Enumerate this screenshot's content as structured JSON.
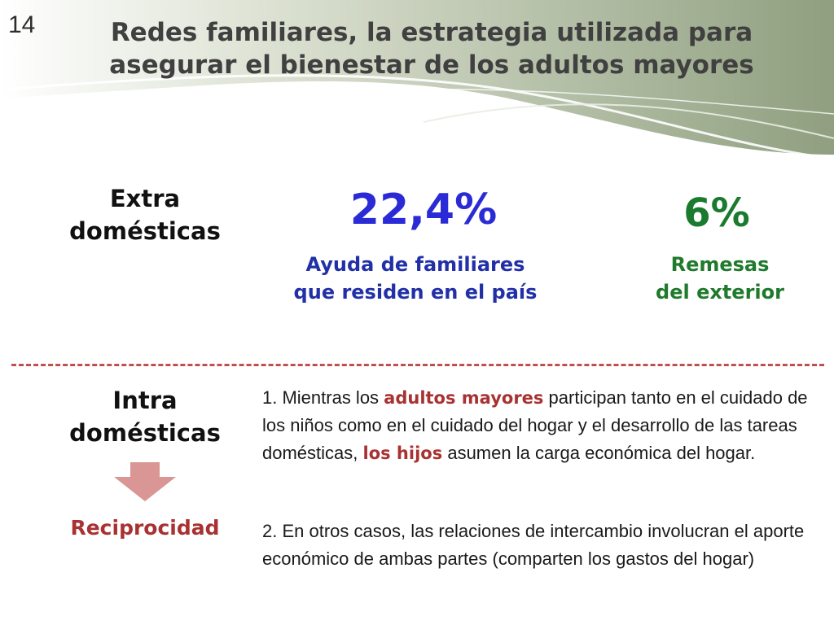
{
  "slide": {
    "number": "14",
    "title_line1": "Redes familiares, la estrategia utilizada para",
    "title_line2": "asegurar el bienestar de los adultos mayores"
  },
  "extra": {
    "label_line1": "Extra",
    "label_line2": "domésticas",
    "stats": [
      {
        "value": "22,4%",
        "desc_line1": "Ayuda de familiares",
        "desc_line2": "que residen en el país"
      },
      {
        "value": "6%",
        "desc_line1": "Remesas",
        "desc_line2": "del exterior"
      }
    ]
  },
  "intra": {
    "label_line1": "Intra",
    "label_line2": "domésticas",
    "reciprocity_label": "Reciprocidad",
    "para1": {
      "p1": "1. Mientras los ",
      "h1": "adultos mayores",
      "p2": " participan tanto en el cuidado de los niños como en el cuidado del hogar y el desarrollo de las tareas domésticas, ",
      "h2": "los hijos",
      "p3": " asumen la carga económica del hogar."
    },
    "para2": "2. En otros casos, las relaciones de intercambio involucran el aporte económico de ambas partes (comparten los gastos del hogar)"
  },
  "colors": {
    "header_band": "#9aa98a",
    "stat1": "#2a2ad6",
    "stat2": "#1a7a2e",
    "accent_red": "#a83232",
    "divider": "#c0504d",
    "arrow": "#d99694"
  }
}
